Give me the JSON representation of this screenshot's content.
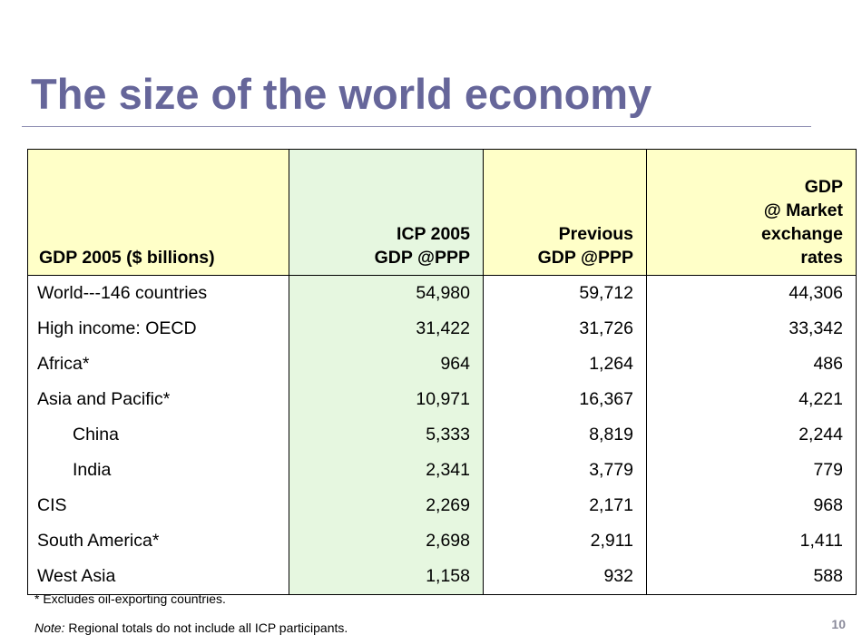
{
  "title": "The size of the world economy",
  "table": {
    "headers": {
      "col1": [
        "GDP 2005 ($ billions)"
      ],
      "col2": [
        "ICP 2005",
        "GDP @PPP"
      ],
      "col3": [
        "Previous",
        "GDP @PPP"
      ],
      "col4": [
        "GDP",
        "@ Market",
        "exchange",
        "rates"
      ]
    },
    "rows": [
      {
        "label": "World---146 countries",
        "icp_ppp": "54,980",
        "prev_ppp": "59,712",
        "market": "44,306"
      },
      {
        "label": "High income: OECD",
        "icp_ppp": "31,422",
        "prev_ppp": "31,726",
        "market": "33,342"
      },
      {
        "label": "Africa*",
        "icp_ppp": "964",
        "prev_ppp": "1,264",
        "market": "486"
      },
      {
        "label": "Asia and Pacific*",
        "icp_ppp": "10,971",
        "prev_ppp": "16,367",
        "market": "4,221"
      },
      {
        "label": "China",
        "icp_ppp": "5,333",
        "prev_ppp": "8,819",
        "market": "2,244"
      },
      {
        "label": "India",
        "icp_ppp": "2,341",
        "prev_ppp": "3,779",
        "market": "779"
      },
      {
        "label": "CIS",
        "icp_ppp": "2,269",
        "prev_ppp": "2,171",
        "market": "968"
      },
      {
        "label": "South America*",
        "icp_ppp": "2,698",
        "prev_ppp": "2,911",
        "market": "1,411"
      },
      {
        "label": "West Asia",
        "icp_ppp": "1,158",
        "prev_ppp": "932",
        "market": "588"
      }
    ]
  },
  "footnote": "* Excludes oil-exporting countries.",
  "note": {
    "label": "Note:",
    "text": " Regional totals do not include all ICP participants."
  },
  "page_number": "10",
  "colors": {
    "title": "#66669a",
    "header_bg": "#ffffc8",
    "icp_column_bg": "#e6f7e0"
  }
}
